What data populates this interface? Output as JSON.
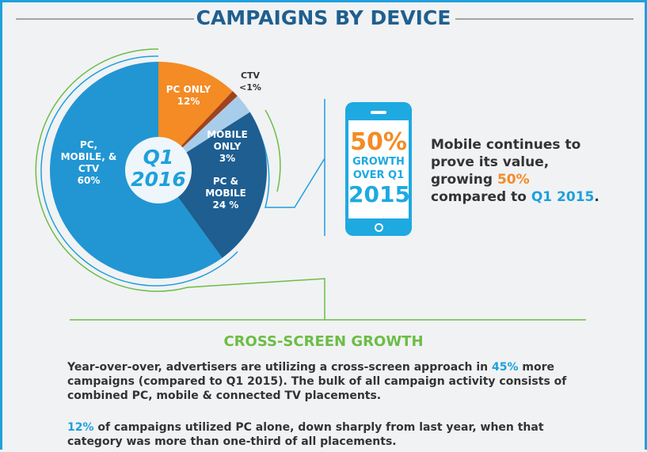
{
  "header": {
    "title": "CAMPAIGNS BY DEVICE"
  },
  "chart_data": {
    "type": "pie",
    "center_label": [
      "Q1",
      "2016"
    ],
    "slices": [
      {
        "label": "PC ONLY",
        "value_label": "12%",
        "value": 12,
        "color": "#f48b24"
      },
      {
        "label": "CTV",
        "value_label": "<1%",
        "value": 1,
        "color": "#a0431c"
      },
      {
        "label": "MOBILE ONLY",
        "value_label": "3%",
        "value": 3,
        "color": "#a8cdeb"
      },
      {
        "label": "PC & MOBILE",
        "value_label": "24 %",
        "value": 24,
        "color": "#1e5e91"
      },
      {
        "label": "PC, MOBILE, & CTV",
        "value_label": "60%",
        "value": 60,
        "color": "#2196d3"
      }
    ]
  },
  "phone": {
    "pct": "50%",
    "line1": "GROWTH",
    "line2": "OVER Q1",
    "year": "2015"
  },
  "mobile_text": {
    "a": "Mobile continues to",
    "b": "prove its value,",
    "c": "growing ",
    "c_hl": "50%",
    "d": "compared to ",
    "d_hl": "Q1 2015",
    "d_end": "."
  },
  "section": {
    "title": "CROSS-SCREEN GROWTH",
    "p1a": "Year-over-over, advertisers are utilizing a cross-screen approach in ",
    "p1_hl": "45%",
    "p1b": " more campaigns (compared to Q1 2015). The bulk of all campaign activity consists of combined PC, mobile & connected TV placements.",
    "p2_hl": "12%",
    "p2": " of campaigns utilized PC alone, down sharply from last year, when that category was more than one-third of all placements."
  }
}
